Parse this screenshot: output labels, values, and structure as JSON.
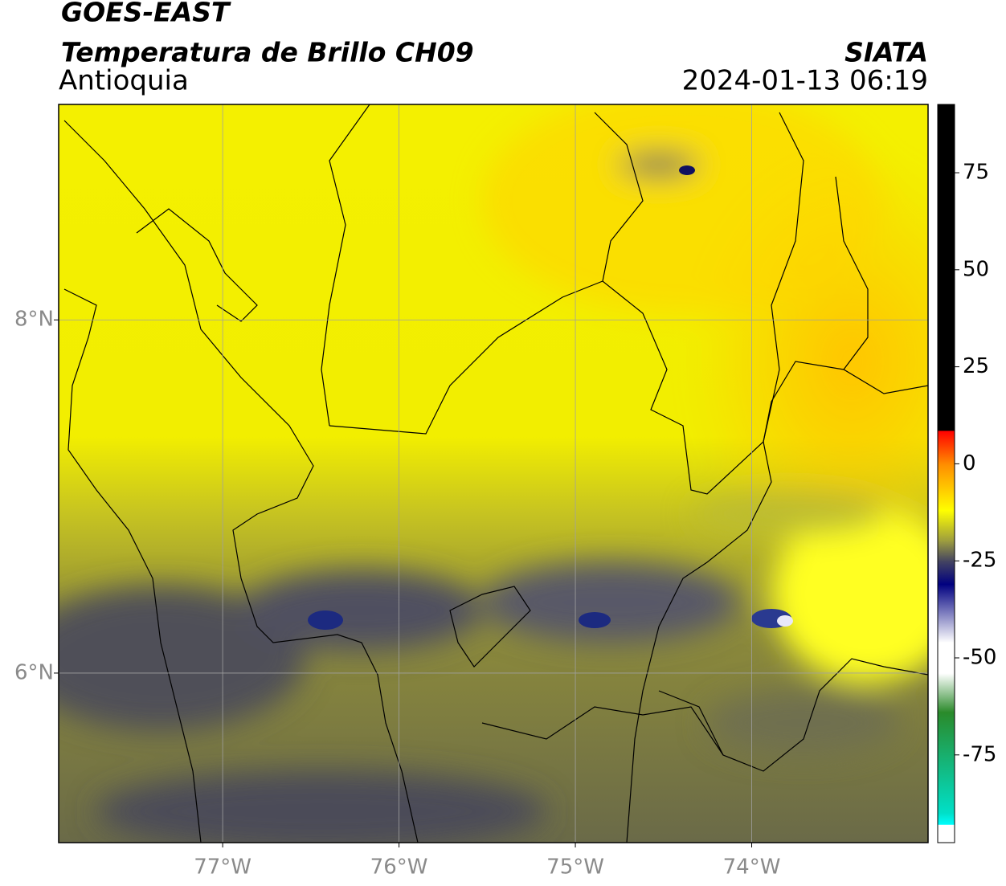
{
  "header": {
    "title": "GOES-EAST",
    "subtitle": "Temperatura de Brillo CH09",
    "region": "Antioquia",
    "source": "SIATA",
    "datetime": "2024-01-13 06:19"
  },
  "map": {
    "xlim": [
      -77.93,
      -73.0
    ],
    "ylim": [
      5.04,
      9.22
    ],
    "xticks": [
      {
        "value": -77,
        "label": "77°W"
      },
      {
        "value": -76,
        "label": "76°W"
      },
      {
        "value": -75,
        "label": "75°W"
      },
      {
        "value": -74,
        "label": "74°W"
      }
    ],
    "yticks": [
      {
        "value": 8,
        "label": "8°N"
      },
      {
        "value": 6,
        "label": "6°N"
      }
    ],
    "grid": true,
    "grid_color": "#a0a0a0"
  },
  "colorbar": {
    "lim": [
      -97.6,
      92.6
    ],
    "ticks": [
      75,
      50,
      25,
      0,
      -25,
      -50,
      -75
    ],
    "stops": [
      {
        "value": 92.6,
        "color": "#000000"
      },
      {
        "value": 8.5,
        "color": "#000000"
      },
      {
        "value": 8.5,
        "color": "#ff0000"
      },
      {
        "value": 0,
        "color": "#ff8c00"
      },
      {
        "value": -12,
        "color": "#ffff00"
      },
      {
        "value": -20,
        "color": "#9a9a40"
      },
      {
        "value": -25,
        "color": "#454560"
      },
      {
        "value": -31,
        "color": "#000080"
      },
      {
        "value": -46,
        "color": "#ffffff"
      },
      {
        "value": -54,
        "color": "#ffffff"
      },
      {
        "value": -64,
        "color": "#2a8a2a"
      },
      {
        "value": -90,
        "color": "#00e0c8"
      },
      {
        "value": -93,
        "color": "#00ffff"
      },
      {
        "value": -93,
        "color": "#ffffff"
      },
      {
        "value": -97.6,
        "color": "#ffffff"
      }
    ]
  }
}
